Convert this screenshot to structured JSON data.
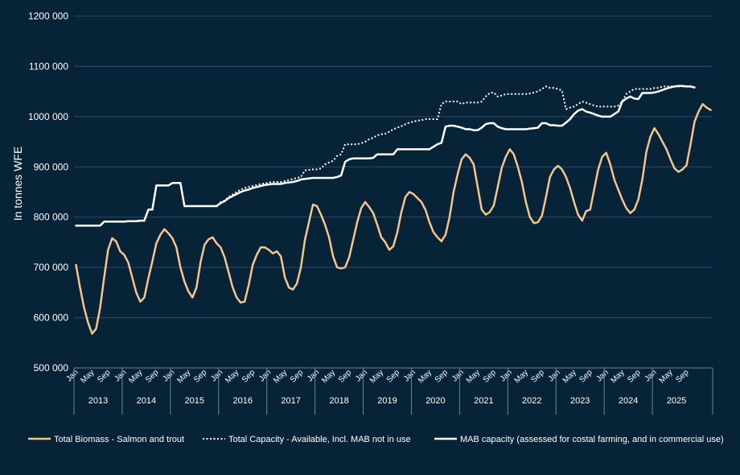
{
  "chart_data": {
    "type": "line",
    "ylabel": "In tonnes WFE",
    "xlabel": "",
    "ylim": [
      500000,
      1200000
    ],
    "yticks": [
      500000,
      600000,
      700000,
      800000,
      900000,
      1000000,
      1100000,
      1200000
    ],
    "ytick_labels": [
      "500 000",
      "600 000",
      "700 000",
      "800 000",
      "900 000",
      "1000 000",
      "1100 000",
      "1200 000"
    ],
    "grid": "horizontal",
    "legend_position": "bottom",
    "x_start": "2013-01",
    "month_labels": [
      "Jan",
      "May",
      "Sep"
    ],
    "years": [
      "2013",
      "2014",
      "2015",
      "2016",
      "2017",
      "2018",
      "2019",
      "2020",
      "2021",
      "2022",
      "2023",
      "2024",
      "2025"
    ],
    "colors": {
      "background": "#072338",
      "biomass": "#f6c48d",
      "capacity": "#ffffff",
      "grid": "#2d4a63"
    },
    "series": [
      {
        "name": "Total Biomass - Salmon and trout",
        "style": "solid",
        "color": "#f6c48d",
        "values": [
          705000,
          660000,
          620000,
          590000,
          568000,
          578000,
          620000,
          680000,
          735000,
          758000,
          752000,
          732000,
          725000,
          710000,
          680000,
          650000,
          632000,
          640000,
          678000,
          712000,
          748000,
          765000,
          776000,
          768000,
          758000,
          740000,
          700000,
          672000,
          652000,
          640000,
          660000,
          710000,
          745000,
          756000,
          760000,
          748000,
          740000,
          720000,
          690000,
          660000,
          640000,
          630000,
          632000,
          665000,
          705000,
          725000,
          740000,
          740000,
          735000,
          728000,
          732000,
          722000,
          680000,
          660000,
          656000,
          668000,
          700000,
          755000,
          790000,
          825000,
          822000,
          805000,
          785000,
          760000,
          722000,
          700000,
          698000,
          700000,
          720000,
          755000,
          790000,
          818000,
          830000,
          820000,
          808000,
          785000,
          760000,
          750000,
          735000,
          742000,
          770000,
          810000,
          840000,
          850000,
          846000,
          838000,
          830000,
          815000,
          790000,
          770000,
          760000,
          752000,
          765000,
          800000,
          850000,
          885000,
          915000,
          925000,
          918000,
          905000,
          860000,
          815000,
          805000,
          810000,
          823000,
          860000,
          898000,
          920000,
          935000,
          925000,
          900000,
          870000,
          830000,
          800000,
          788000,
          790000,
          803000,
          840000,
          880000,
          895000,
          902000,
          895000,
          880000,
          858000,
          830000,
          805000,
          793000,
          812000,
          815000,
          855000,
          895000,
          920000,
          928000,
          905000,
          875000,
          855000,
          835000,
          818000,
          808000,
          815000,
          835000,
          875000,
          930000,
          960000,
          977000,
          965000,
          950000,
          935000,
          915000,
          897000,
          890000,
          895000,
          903000,
          945000,
          990000,
          1010000,
          1025000,
          1018000,
          1013000
        ]
      },
      {
        "name": "Total Capacity - Available, Incl. MAB not in use",
        "style": "dotted",
        "color": "#ffffff",
        "values": [
          783000,
          783000,
          783000,
          783000,
          783000,
          783000,
          783000,
          791000,
          791000,
          791000,
          791000,
          791000,
          791000,
          792000,
          792000,
          792000,
          793000,
          793000,
          815000,
          815000,
          863000,
          863000,
          863000,
          863000,
          868000,
          868000,
          868000,
          822000,
          822000,
          822000,
          822000,
          822000,
          822000,
          822000,
          822000,
          822000,
          830000,
          833000,
          840000,
          845000,
          850000,
          855000,
          858000,
          860000,
          862000,
          864000,
          866000,
          867000,
          869000,
          870000,
          870000,
          870000,
          872000,
          874000,
          876000,
          878000,
          880000,
          893000,
          894000,
          895000,
          895000,
          897000,
          905000,
          909000,
          912000,
          922000,
          925000,
          945000,
          945000,
          945000,
          945000,
          947000,
          950000,
          955000,
          958000,
          963000,
          965000,
          966000,
          970000,
          975000,
          978000,
          981000,
          985000,
          988000,
          990000,
          992000,
          993000,
          995000,
          995000,
          995000,
          995000,
          1025000,
          1030000,
          1030000,
          1030000,
          1030000,
          1025000,
          1028000,
          1028000,
          1028000,
          1028000,
          1030000,
          1040000,
          1047000,
          1048000,
          1040000,
          1042000,
          1045000,
          1045000,
          1045000,
          1045000,
          1045000,
          1045000,
          1046000,
          1048000,
          1050000,
          1055000,
          1060000,
          1057000,
          1057000,
          1055000,
          1052000,
          1015000,
          1018000,
          1020000,
          1025000,
          1030000,
          1028000,
          1025000,
          1022000,
          1020000,
          1020000,
          1020000,
          1020000,
          1020000,
          1022000,
          1030000,
          1045000,
          1050000,
          1055000,
          1055000,
          1055000,
          1055000,
          1055000,
          1057000,
          1057000,
          1060000,
          1060000,
          1060000,
          1060000,
          1060000,
          1060000,
          1060000
        ]
      },
      {
        "name": "MAB capacity (assessed for costal farming, and in commercial use)",
        "style": "solid",
        "color": "#ffffff",
        "values": [
          783000,
          783000,
          783000,
          783000,
          783000,
          783000,
          783000,
          791000,
          791000,
          791000,
          791000,
          791000,
          791000,
          792000,
          792000,
          792000,
          793000,
          793000,
          815000,
          815000,
          863000,
          863000,
          863000,
          863000,
          868000,
          868000,
          868000,
          822000,
          822000,
          822000,
          822000,
          822000,
          822000,
          822000,
          822000,
          822000,
          828000,
          832000,
          838000,
          842000,
          846000,
          850000,
          853000,
          855000,
          858000,
          860000,
          862000,
          864000,
          865000,
          866000,
          866000,
          866000,
          868000,
          869000,
          870000,
          872000,
          875000,
          876000,
          877000,
          878000,
          878000,
          878000,
          878000,
          878000,
          878000,
          880000,
          883000,
          910000,
          915000,
          917000,
          917000,
          917000,
          917000,
          917000,
          918000,
          925000,
          925000,
          925000,
          925000,
          925000,
          935000,
          935000,
          935000,
          935000,
          935000,
          935000,
          935000,
          935000,
          935000,
          940000,
          945000,
          948000,
          980000,
          982000,
          982000,
          980000,
          978000,
          975000,
          975000,
          973000,
          973000,
          978000,
          985000,
          987000,
          987000,
          980000,
          977000,
          975000,
          975000,
          975000,
          975000,
          975000,
          975000,
          976000,
          977000,
          978000,
          987000,
          987000,
          983000,
          983000,
          982000,
          982000,
          988000,
          995000,
          1005000,
          1012000,
          1015000,
          1010000,
          1008000,
          1005000,
          1002000,
          1000000,
          1000000,
          1000000,
          1005000,
          1010000,
          1030000,
          1036000,
          1040000,
          1036000,
          1035000,
          1047000,
          1047000,
          1047000,
          1048000,
          1050000,
          1053000,
          1056000,
          1058000,
          1060000,
          1061000,
          1061000,
          1060000,
          1060000,
          1058000
        ]
      }
    ]
  }
}
